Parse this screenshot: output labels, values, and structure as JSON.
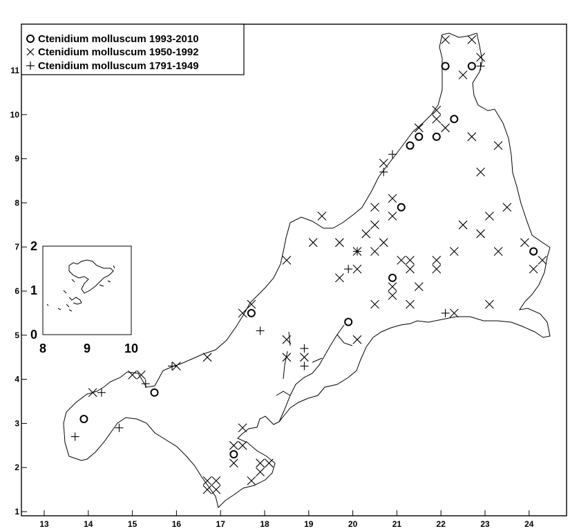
{
  "chart_data": {
    "type": "scatter",
    "title": "",
    "xlabel": "",
    "ylabel": "",
    "xlim": [
      12.5,
      24.75
    ],
    "ylim": [
      0.9,
      11.95
    ],
    "x_ticks": [
      "13",
      "14",
      "15",
      "16",
      "17",
      "18",
      "19",
      "20",
      "21",
      "22",
      "23",
      "24"
    ],
    "y_ticks": [
      "1",
      "2",
      "3",
      "4",
      "5",
      "6",
      "7",
      "8",
      "9",
      "10",
      "11"
    ],
    "legend_position": "top-left",
    "colors": {
      "marker": "#000000",
      "outline": "#000000",
      "background": "#ffffff"
    },
    "series": [
      {
        "name": "Ctenidium molluscum 1993-2010",
        "marker": "circle",
        "points": [
          [
            13.9,
            3.1
          ],
          [
            15.5,
            3.7
          ],
          [
            17.3,
            2.3
          ],
          [
            17.7,
            5.5
          ],
          [
            19.9,
            5.3
          ],
          [
            20.9,
            6.3
          ],
          [
            21.1,
            7.9
          ],
          [
            21.3,
            9.3
          ],
          [
            21.5,
            9.5
          ],
          [
            21.9,
            9.5
          ],
          [
            22.1,
            11.1
          ],
          [
            22.3,
            9.9
          ],
          [
            22.7,
            11.1
          ],
          [
            24.1,
            6.9
          ]
        ]
      },
      {
        "name": "Ctenidium molluscum 1950-1992",
        "marker": "x",
        "points": [
          [
            14.1,
            3.7
          ],
          [
            15.0,
            4.1
          ],
          [
            15.2,
            4.1
          ],
          [
            16.0,
            4.3
          ],
          [
            16.7,
            4.5
          ],
          [
            16.7,
            1.7
          ],
          [
            16.9,
            1.7
          ],
          [
            16.7,
            1.5
          ],
          [
            16.9,
            1.5
          ],
          [
            17.3,
            2.5
          ],
          [
            17.3,
            2.1
          ],
          [
            17.5,
            2.9
          ],
          [
            17.5,
            2.5
          ],
          [
            17.7,
            5.7
          ],
          [
            17.5,
            5.5
          ],
          [
            17.9,
            1.9
          ],
          [
            17.9,
            2.1
          ],
          [
            17.7,
            1.7
          ],
          [
            18.1,
            2.1
          ],
          [
            18.5,
            6.7
          ],
          [
            18.5,
            4.9
          ],
          [
            18.5,
            4.5
          ],
          [
            18.9,
            4.5
          ],
          [
            19.1,
            7.1
          ],
          [
            19.3,
            7.7
          ],
          [
            19.7,
            7.1
          ],
          [
            19.7,
            6.3
          ],
          [
            20.1,
            6.9
          ],
          [
            20.1,
            6.5
          ],
          [
            20.1,
            4.9
          ],
          [
            20.3,
            7.3
          ],
          [
            20.5,
            7.9
          ],
          [
            20.5,
            7.5
          ],
          [
            20.5,
            6.9
          ],
          [
            20.5,
            5.7
          ],
          [
            20.7,
            8.9
          ],
          [
            20.7,
            7.1
          ],
          [
            20.9,
            8.1
          ],
          [
            20.9,
            7.7
          ],
          [
            20.9,
            6.1
          ],
          [
            20.9,
            5.9
          ],
          [
            21.1,
            6.7
          ],
          [
            21.3,
            6.7
          ],
          [
            21.3,
            6.5
          ],
          [
            21.3,
            5.7
          ],
          [
            21.5,
            9.7
          ],
          [
            21.5,
            6.1
          ],
          [
            21.9,
            10.1
          ],
          [
            21.9,
            9.9
          ],
          [
            21.9,
            6.7
          ],
          [
            21.9,
            6.5
          ],
          [
            22.1,
            11.7
          ],
          [
            22.1,
            9.7
          ],
          [
            22.3,
            6.9
          ],
          [
            22.3,
            5.5
          ],
          [
            22.5,
            10.9
          ],
          [
            22.5,
            7.5
          ],
          [
            22.7,
            11.7
          ],
          [
            22.7,
            9.5
          ],
          [
            22.9,
            11.3
          ],
          [
            22.9,
            8.7
          ],
          [
            22.9,
            7.3
          ],
          [
            23.1,
            7.7
          ],
          [
            23.1,
            5.7
          ],
          [
            23.3,
            9.3
          ],
          [
            23.3,
            6.9
          ],
          [
            23.5,
            7.9
          ],
          [
            23.9,
            7.1
          ],
          [
            24.1,
            6.5
          ],
          [
            24.3,
            6.7
          ]
        ]
      },
      {
        "name": "Ctenidium molluscum 1791-1949",
        "marker": "plus",
        "points": [
          [
            13.7,
            2.7
          ],
          [
            14.3,
            3.7
          ],
          [
            14.7,
            2.9
          ],
          [
            15.3,
            3.9
          ],
          [
            15.9,
            4.3
          ],
          [
            17.9,
            5.1
          ],
          [
            18.9,
            4.7
          ],
          [
            18.9,
            4.3
          ],
          [
            19.9,
            6.5
          ],
          [
            20.1,
            6.9
          ],
          [
            20.7,
            8.7
          ],
          [
            20.9,
            9.1
          ],
          [
            22.1,
            5.5
          ],
          [
            22.9,
            11.1
          ]
        ]
      }
    ]
  },
  "inset": {
    "x_ticks": [
      "8",
      "9",
      "10"
    ],
    "y_ticks": [
      "0",
      "1",
      "2"
    ]
  }
}
